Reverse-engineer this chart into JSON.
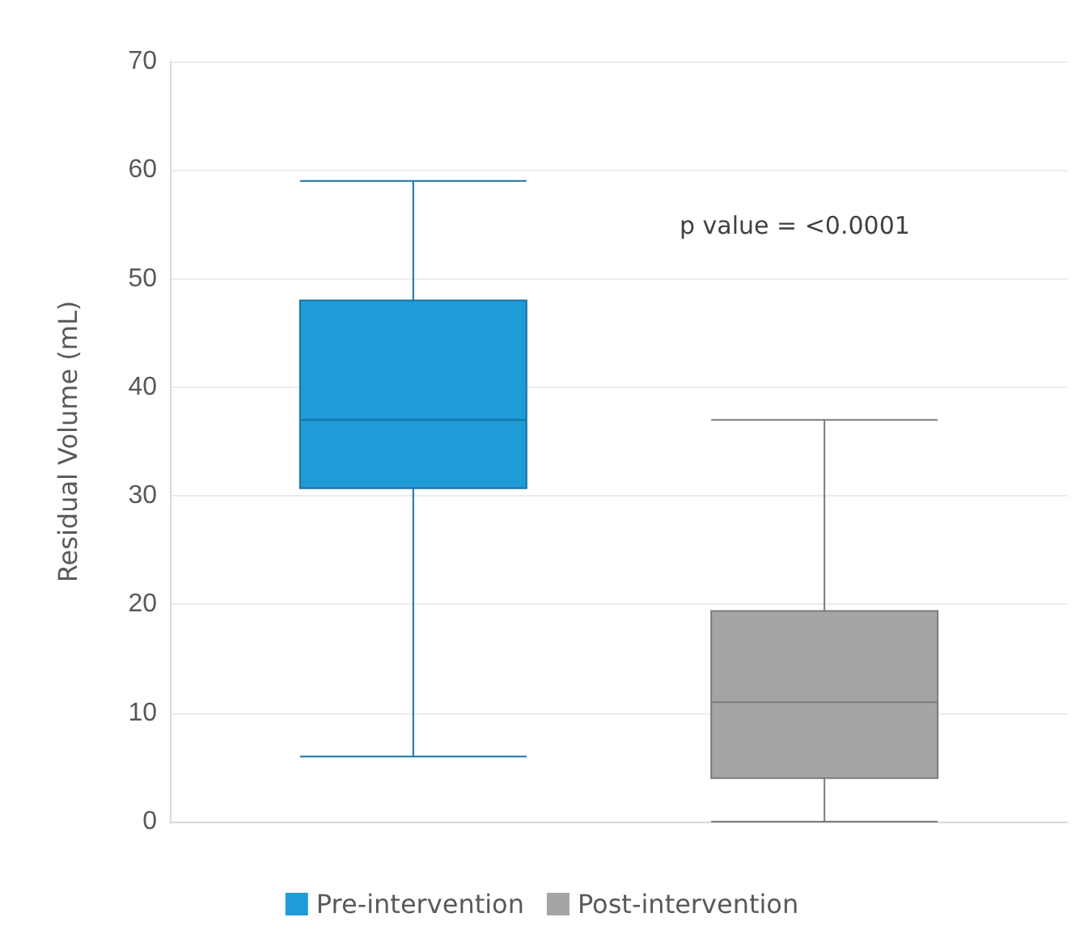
{
  "chart_data": {
    "type": "box",
    "ylabel": "Residual Volume (mL)",
    "categories": [
      null
    ],
    "series": [
      {
        "name": "Pre-intervention",
        "color": "#1f9bd7",
        "boxes": [
          {
            "low": 6,
            "q1": 30.7,
            "median": 37,
            "q3": 48,
            "high": 59
          }
        ]
      },
      {
        "name": "Post-intervention",
        "color": "#a5a5a5",
        "boxes": [
          {
            "low": 0,
            "q1": 4,
            "median": 11,
            "q3": 19.4,
            "high": 37
          }
        ]
      }
    ],
    "ylim": [
      0,
      70
    ],
    "yticks": [
      0,
      10,
      20,
      30,
      40,
      50,
      60,
      70
    ],
    "grid": "y",
    "legend": "bottom",
    "annotations": [
      "p value = <0.0001"
    ]
  }
}
